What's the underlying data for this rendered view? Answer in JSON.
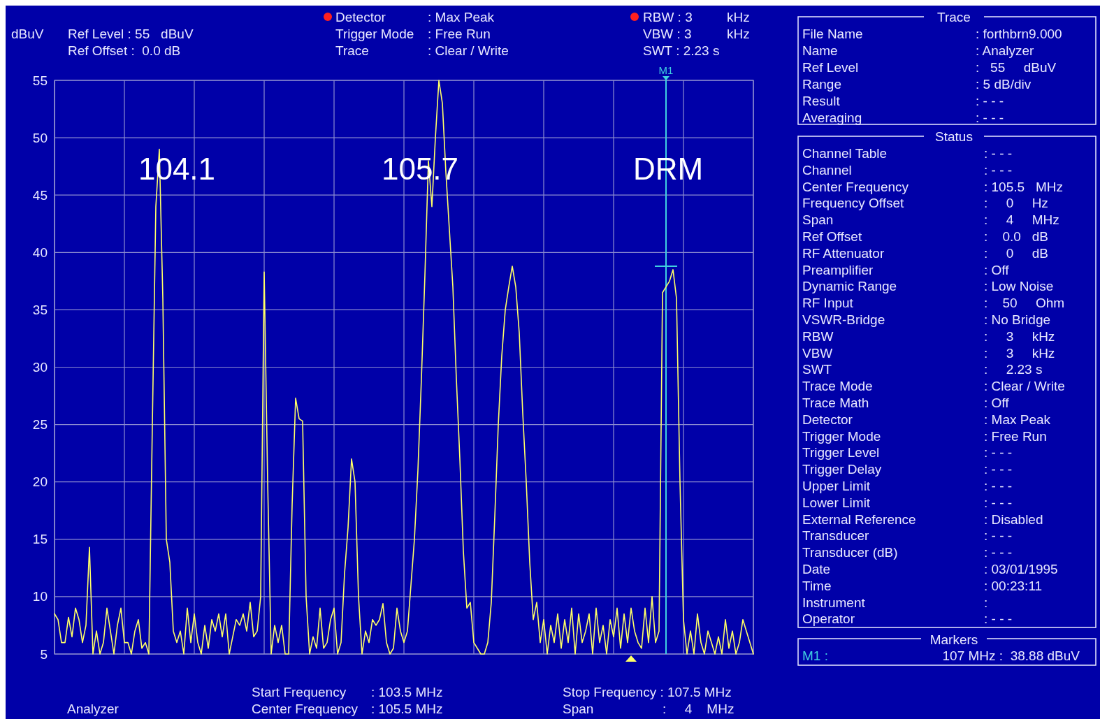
{
  "chart_data": {
    "type": "line",
    "ylabel": "dBuV",
    "ylim": [
      5,
      55
    ],
    "yticks": [
      5,
      10,
      15,
      20,
      25,
      30,
      35,
      40,
      45,
      50,
      55
    ],
    "categories": [
      null,
      null,
      null,
      null,
      null,
      null,
      null,
      null,
      null,
      null,
      null,
      null,
      null,
      null,
      null,
      null,
      null,
      null,
      null,
      null,
      null,
      null,
      null,
      null,
      null,
      null,
      null,
      null,
      null,
      null,
      null,
      null,
      null,
      null,
      null,
      null,
      null,
      null,
      null,
      null,
      null,
      null,
      null,
      null,
      null,
      null,
      null,
      null,
      null,
      null,
      null,
      null,
      null,
      null,
      null,
      null,
      null,
      null,
      null,
      null,
      null,
      null,
      null,
      null,
      null,
      null,
      null,
      null,
      null,
      null,
      null,
      null,
      null,
      null,
      null,
      null,
      null,
      null,
      null,
      null,
      null,
      null,
      null,
      null,
      null,
      null,
      null,
      null,
      null,
      null,
      null,
      null,
      null,
      null,
      null,
      null,
      null,
      null,
      null,
      null,
      null,
      null,
      null,
      null,
      null,
      null,
      null,
      null,
      null,
      null,
      null,
      null,
      null,
      null,
      null,
      null,
      null,
      null,
      null,
      null,
      null,
      null,
      null,
      null,
      null,
      null,
      null,
      null,
      null,
      null,
      null,
      null,
      null,
      null,
      null,
      null,
      null,
      null,
      null,
      null,
      null,
      null,
      null,
      null,
      null,
      null,
      null,
      null,
      null,
      null,
      null,
      null,
      null,
      null,
      null,
      null,
      null,
      null,
      null,
      null,
      null,
      null,
      null,
      null,
      null,
      null,
      null,
      null,
      null,
      null,
      null,
      null,
      null,
      null,
      null,
      "M1",
      null,
      null,
      null,
      null,
      null,
      null,
      null,
      null,
      null,
      null,
      null,
      null,
      null,
      null,
      null,
      null,
      null,
      null,
      null,
      null,
      null,
      null,
      null,
      null,
      null
    ],
    "grid": true,
    "ref_lines": [
      {
        "axis": "x",
        "value": "M1",
        "color": "#40d0e0"
      }
    ],
    "series": [
      {
        "color": "#ffff66",
        "values": [
          8.5,
          8,
          6,
          6,
          8.2,
          6.5,
          9,
          8,
          6,
          7.5,
          14.3,
          5,
          7,
          5,
          6,
          9,
          7,
          5,
          7.5,
          9,
          6,
          6,
          5,
          7,
          8,
          5.5,
          6,
          5,
          25,
          44,
          49,
          36,
          15,
          13,
          7,
          6,
          7,
          5,
          9,
          6,
          8.5,
          6,
          5,
          7.5,
          5.5,
          8,
          7,
          8.5,
          6.5,
          8.5,
          5,
          6.5,
          8,
          7.5,
          8.5,
          7,
          9.5,
          6.5,
          7,
          10,
          38.3,
          20,
          5,
          7.5,
          6,
          7.5,
          5,
          5,
          18,
          27.3,
          25.5,
          25.3,
          10,
          5,
          6.5,
          5.5,
          9,
          5.5,
          6,
          8,
          9,
          5,
          6,
          12,
          16,
          22,
          20,
          10,
          5,
          7,
          6,
          8,
          7.5,
          8,
          9.4,
          6,
          5,
          5.5,
          9,
          7,
          6,
          7,
          11,
          15,
          21,
          29,
          38,
          48,
          44,
          50,
          55,
          53,
          47,
          42,
          37,
          29,
          22,
          14,
          9,
          9.5,
          6,
          5.5,
          5,
          5,
          6,
          9.5,
          17,
          25,
          31,
          35,
          37,
          38.8,
          37,
          33,
          26,
          20,
          13,
          8,
          9.5,
          6,
          8,
          5,
          7.5,
          6,
          8.5,
          5.5,
          8,
          6,
          9,
          5,
          8.5,
          6,
          7,
          8.5,
          5,
          9,
          6,
          7.5,
          5,
          8,
          6.5,
          9,
          5.5,
          8.5,
          6,
          9,
          7,
          6,
          5.5,
          9,
          6,
          10,
          6,
          7,
          36.5,
          37,
          37.5,
          38.5,
          36,
          20,
          8,
          5,
          7,
          5,
          8.5,
          6,
          5,
          7,
          6,
          5,
          6.5,
          5,
          8,
          5.5,
          7,
          5,
          6,
          8,
          7,
          6,
          5
        ]
      }
    ],
    "annotations": [
      "Ref Level : 55   dBuV",
      "Ref Offset :  0.0 dB",
      "Detector",
      ": Max Peak",
      "Trigger Mode",
      ": Free Run",
      "Trace",
      ": Clear / Write",
      "RBW : 3",
      "kHz",
      "VBW : 3",
      "kHz",
      "SWT : 2.23 s",
      "Analyzer",
      "Start Frequency",
      ": 103.5 MHz",
      "Center Frequency",
      ": 105.5 MHz",
      "Stop Frequency : 107.5 MHz",
      "Span",
      ":     4    MHz",
      "104.1",
      "105.7",
      "DRM",
      "Trace",
      "File Name",
      ": forthbrn9.000",
      "Name",
      ": Analyzer",
      "Ref Level",
      ":   55     dBuV",
      "Range",
      ": 5 dB/div",
      "Result",
      ": - - -",
      "Averaging",
      ": - - -",
      "Status",
      "Channel Table",
      ": - - -",
      "Channel",
      ": - - -",
      "Center Frequency",
      ": 105.5   MHz",
      "Frequency Offset",
      ":     0     Hz",
      "Span",
      ":     4     MHz",
      "Ref Offset",
      ":    0.0   dB",
      "RF Attenuator",
      ":     0     dB",
      "Preamplifier",
      ": Off",
      "Dynamic Range",
      ": Low Noise",
      "RF Input",
      ":    50     Ohm",
      "VSWR-Bridge",
      ": No Bridge",
      "RBW",
      ":     3     kHz",
      "VBW",
      ":     3     kHz",
      "SWT",
      ":     2.23 s",
      "Trace Mode",
      ": Clear / Write",
      "Trace Math",
      ": Off",
      "Detector",
      ": Max Peak",
      "Trigger Mode",
      ": Free Run",
      "Trigger Level",
      ": - - -",
      "Trigger Delay",
      ": - - -",
      "Upper Limit",
      ": - - -",
      "Lower Limit",
      ": - - -",
      "External Reference",
      ": Disabled",
      "Transducer",
      ": - - -",
      "Transducer (dB)",
      ": - - -",
      "Date",
      ": 03/01/1995",
      "Time",
      ": 00:23:11",
      "Instrument",
      ":",
      "Operator",
      ": - - -",
      "Markers",
      "M1 :",
      "107 MHz :  38.88 dBuV"
    ]
  }
}
